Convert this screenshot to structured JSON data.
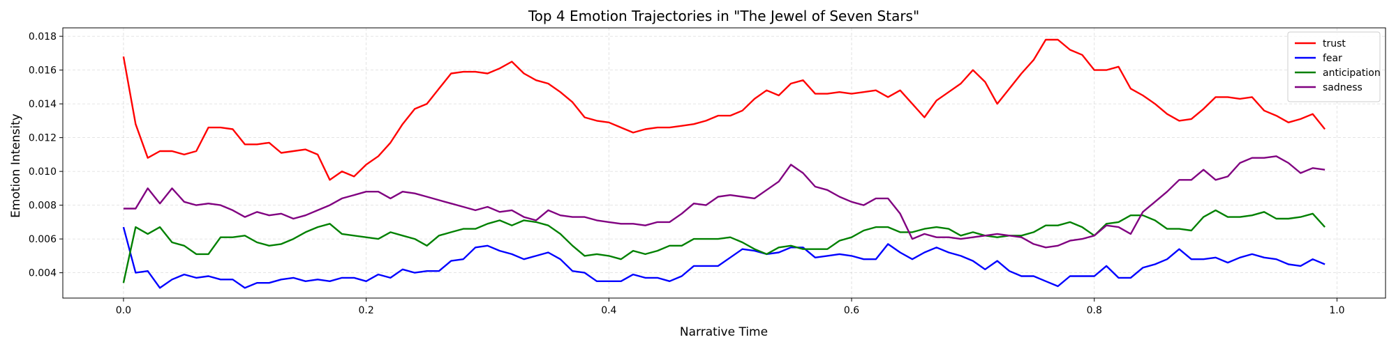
{
  "chart_data": {
    "type": "line",
    "title": "Top 4 Emotion Trajectories in \"The Jewel of Seven Stars\"",
    "xlabel": "Narrative Time",
    "ylabel": "Emotion Intensity",
    "xlim": [
      -0.05,
      1.04
    ],
    "ylim": [
      0.0025,
      0.0185
    ],
    "x_ticks": [
      0.0,
      0.2,
      0.4,
      0.6,
      0.8,
      1.0
    ],
    "x_tick_labels": [
      "0.0",
      "0.2",
      "0.4",
      "0.6",
      "0.8",
      "1.0"
    ],
    "y_ticks": [
      0.004,
      0.006,
      0.008,
      0.01,
      0.012,
      0.014,
      0.016,
      0.018
    ],
    "y_tick_labels": [
      "0.004",
      "0.006",
      "0.008",
      "0.010",
      "0.012",
      "0.014",
      "0.016",
      "0.018"
    ],
    "grid": true,
    "legend_position": "upper right",
    "x": [
      0.0,
      0.01,
      0.02,
      0.03,
      0.04,
      0.05,
      0.06,
      0.07,
      0.08,
      0.09,
      0.1,
      0.11,
      0.12,
      0.13,
      0.14,
      0.15,
      0.16,
      0.17,
      0.18,
      0.19,
      0.2,
      0.21,
      0.22,
      0.23,
      0.24,
      0.25,
      0.26,
      0.27,
      0.28,
      0.29,
      0.3,
      0.31,
      0.32,
      0.33,
      0.34,
      0.35,
      0.36,
      0.37,
      0.38,
      0.39,
      0.4,
      0.41,
      0.42,
      0.43,
      0.44,
      0.45,
      0.46,
      0.47,
      0.48,
      0.49,
      0.5,
      0.51,
      0.52,
      0.53,
      0.54,
      0.55,
      0.56,
      0.57,
      0.58,
      0.59,
      0.6,
      0.61,
      0.62,
      0.63,
      0.64,
      0.65,
      0.66,
      0.67,
      0.68,
      0.69,
      0.7,
      0.71,
      0.72,
      0.73,
      0.74,
      0.75,
      0.76,
      0.77,
      0.78,
      0.79,
      0.8,
      0.81,
      0.82,
      0.83,
      0.84,
      0.85,
      0.86,
      0.87,
      0.88,
      0.89,
      0.9,
      0.91,
      0.92,
      0.93,
      0.94,
      0.95,
      0.96,
      0.97,
      0.98,
      0.99
    ],
    "series": [
      {
        "name": "trust",
        "color": "#ff0000",
        "values": [
          0.0168,
          0.0128,
          0.0108,
          0.0112,
          0.0112,
          0.011,
          0.0112,
          0.0126,
          0.0126,
          0.0125,
          0.0116,
          0.0116,
          0.0117,
          0.0111,
          0.0112,
          0.0113,
          0.011,
          0.0095,
          0.01,
          0.0097,
          0.0104,
          0.0109,
          0.0117,
          0.0128,
          0.0137,
          0.014,
          0.0149,
          0.0158,
          0.0159,
          0.0159,
          0.0158,
          0.0161,
          0.0165,
          0.0158,
          0.0154,
          0.0152,
          0.0147,
          0.0141,
          0.0132,
          0.013,
          0.0129,
          0.0126,
          0.0123,
          0.0125,
          0.0126,
          0.0126,
          0.0127,
          0.0128,
          0.013,
          0.0133,
          0.0133,
          0.0136,
          0.0143,
          0.0148,
          0.0145,
          0.0152,
          0.0154,
          0.0146,
          0.0146,
          0.0147,
          0.0146,
          0.0147,
          0.0148,
          0.0144,
          0.0148,
          0.014,
          0.0132,
          0.0142,
          0.0147,
          0.0152,
          0.016,
          0.0153,
          0.014,
          0.0149,
          0.0158,
          0.0166,
          0.0178,
          0.0178,
          0.0172,
          0.0169,
          0.016,
          0.016,
          0.0162,
          0.0149,
          0.0145,
          0.014,
          0.0134,
          0.013,
          0.0131,
          0.0137,
          0.0144,
          0.0144,
          0.0143,
          0.0144,
          0.0136,
          0.0133,
          0.0129,
          0.0131,
          0.0134,
          0.0125
        ]
      },
      {
        "name": "fear",
        "color": "#0000ff",
        "values": [
          0.0067,
          0.004,
          0.0041,
          0.0031,
          0.0036,
          0.0039,
          0.0037,
          0.0038,
          0.0036,
          0.0036,
          0.0031,
          0.0034,
          0.0034,
          0.0036,
          0.0037,
          0.0035,
          0.0036,
          0.0035,
          0.0037,
          0.0037,
          0.0035,
          0.0039,
          0.0037,
          0.0042,
          0.004,
          0.0041,
          0.0041,
          0.0047,
          0.0048,
          0.0055,
          0.0056,
          0.0053,
          0.0051,
          0.0048,
          0.005,
          0.0052,
          0.0048,
          0.0041,
          0.004,
          0.0035,
          0.0035,
          0.0035,
          0.0039,
          0.0037,
          0.0037,
          0.0035,
          0.0038,
          0.0044,
          0.0044,
          0.0044,
          0.0049,
          0.0054,
          0.0053,
          0.0051,
          0.0052,
          0.0055,
          0.0055,
          0.0049,
          0.005,
          0.0051,
          0.005,
          0.0048,
          0.0048,
          0.0057,
          0.0052,
          0.0048,
          0.0052,
          0.0055,
          0.0052,
          0.005,
          0.0047,
          0.0042,
          0.0047,
          0.0041,
          0.0038,
          0.0038,
          0.0035,
          0.0032,
          0.0038,
          0.0038,
          0.0038,
          0.0044,
          0.0037,
          0.0037,
          0.0043,
          0.0045,
          0.0048,
          0.0054,
          0.0048,
          0.0048,
          0.0049,
          0.0046,
          0.0049,
          0.0051,
          0.0049,
          0.0048,
          0.0045,
          0.0044,
          0.0048,
          0.0045
        ]
      },
      {
        "name": "anticipation",
        "color": "#008000",
        "values": [
          0.0034,
          0.0067,
          0.0063,
          0.0067,
          0.0058,
          0.0056,
          0.0051,
          0.0051,
          0.0061,
          0.0061,
          0.0062,
          0.0058,
          0.0056,
          0.0057,
          0.006,
          0.0064,
          0.0067,
          0.0069,
          0.0063,
          0.0062,
          0.0061,
          0.006,
          0.0064,
          0.0062,
          0.006,
          0.0056,
          0.0062,
          0.0064,
          0.0066,
          0.0066,
          0.0069,
          0.0071,
          0.0068,
          0.0071,
          0.007,
          0.0068,
          0.0063,
          0.0056,
          0.005,
          0.0051,
          0.005,
          0.0048,
          0.0053,
          0.0051,
          0.0053,
          0.0056,
          0.0056,
          0.006,
          0.006,
          0.006,
          0.0061,
          0.0058,
          0.0054,
          0.0051,
          0.0055,
          0.0056,
          0.0054,
          0.0054,
          0.0054,
          0.0059,
          0.0061,
          0.0065,
          0.0067,
          0.0067,
          0.0064,
          0.0064,
          0.0066,
          0.0067,
          0.0066,
          0.0062,
          0.0064,
          0.0062,
          0.0061,
          0.0062,
          0.0062,
          0.0064,
          0.0068,
          0.0068,
          0.007,
          0.0067,
          0.0062,
          0.0069,
          0.007,
          0.0074,
          0.0074,
          0.0071,
          0.0066,
          0.0066,
          0.0065,
          0.0073,
          0.0077,
          0.0073,
          0.0073,
          0.0074,
          0.0076,
          0.0072,
          0.0072,
          0.0073,
          0.0075,
          0.0067
        ]
      },
      {
        "name": "sadness",
        "color": "#800080",
        "values": [
          0.0078,
          0.0078,
          0.009,
          0.0081,
          0.009,
          0.0082,
          0.008,
          0.0081,
          0.008,
          0.0077,
          0.0073,
          0.0076,
          0.0074,
          0.0075,
          0.0072,
          0.0074,
          0.0077,
          0.008,
          0.0084,
          0.0086,
          0.0088,
          0.0088,
          0.0084,
          0.0088,
          0.0087,
          0.0085,
          0.0083,
          0.0081,
          0.0079,
          0.0077,
          0.0079,
          0.0076,
          0.0077,
          0.0073,
          0.0071,
          0.0077,
          0.0074,
          0.0073,
          0.0073,
          0.0071,
          0.007,
          0.0069,
          0.0069,
          0.0068,
          0.007,
          0.007,
          0.0075,
          0.0081,
          0.008,
          0.0085,
          0.0086,
          0.0085,
          0.0084,
          0.0089,
          0.0094,
          0.0104,
          0.0099,
          0.0091,
          0.0089,
          0.0085,
          0.0082,
          0.008,
          0.0084,
          0.0084,
          0.0075,
          0.006,
          0.0063,
          0.0061,
          0.0061,
          0.006,
          0.0061,
          0.0062,
          0.0063,
          0.0062,
          0.0061,
          0.0057,
          0.0055,
          0.0056,
          0.0059,
          0.006,
          0.0062,
          0.0068,
          0.0067,
          0.0063,
          0.0076,
          0.0082,
          0.0088,
          0.0095,
          0.0095,
          0.0101,
          0.0095,
          0.0097,
          0.0105,
          0.0108,
          0.0108,
          0.0109,
          0.0105,
          0.0099,
          0.0102,
          0.0101
        ]
      }
    ]
  }
}
